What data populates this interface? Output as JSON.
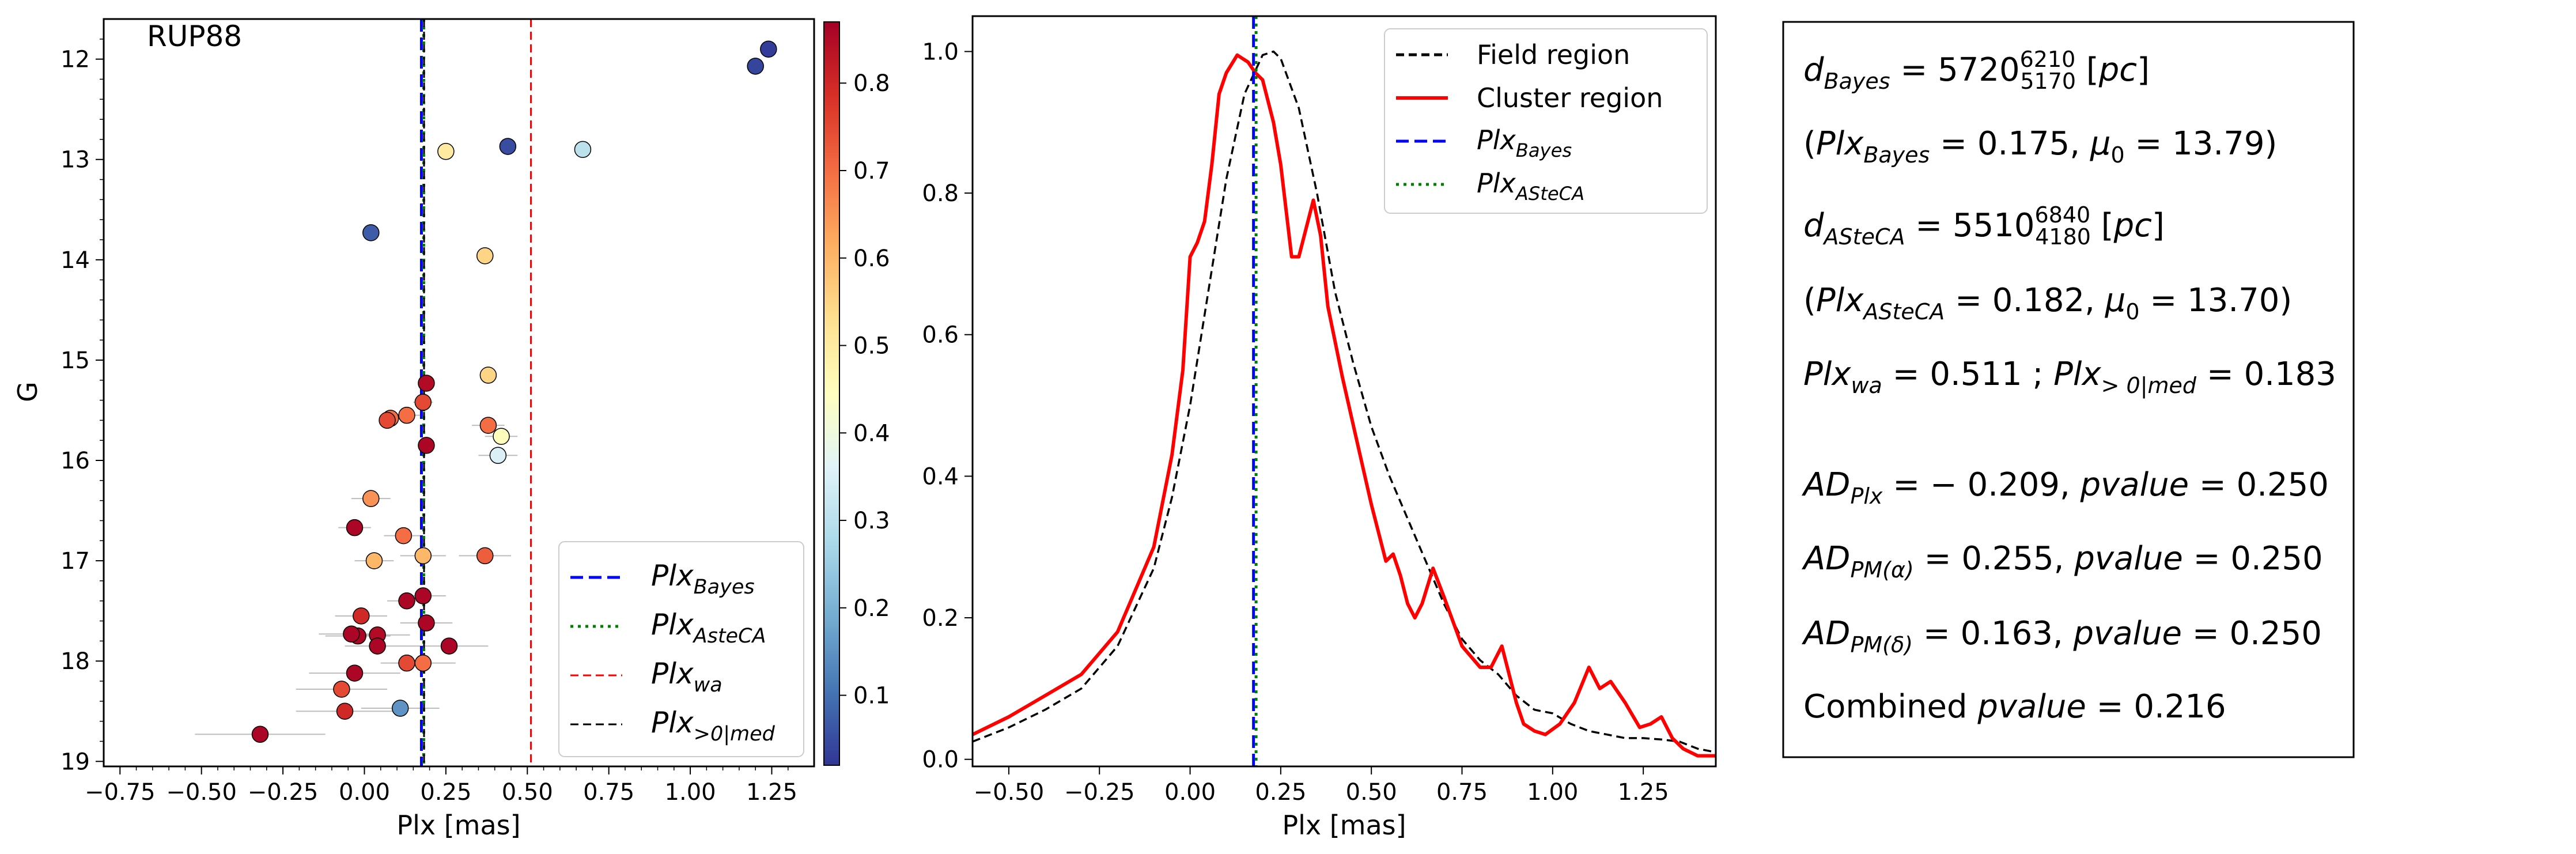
{
  "chart_data": [
    {
      "type": "scatter",
      "title": "RUP88",
      "xlabel": "Plx [mas]",
      "ylabel": "G",
      "xlim": [
        -0.8,
        1.38
      ],
      "ylim": [
        19.05,
        11.6
      ],
      "y_inverted": true,
      "x_ticks": [
        -0.75,
        -0.5,
        -0.25,
        0.0,
        0.25,
        0.5,
        0.75,
        1.0,
        1.25
      ],
      "x_tick_labels": [
        "−0.75",
        "−0.50",
        "−0.25",
        "0.00",
        "0.25",
        "0.50",
        "0.75",
        "1.00",
        "1.25"
      ],
      "y_ticks": [
        12,
        13,
        14,
        15,
        16,
        17,
        18,
        19
      ],
      "y_tick_labels": [
        "12",
        "13",
        "14",
        "15",
        "16",
        "17",
        "18",
        "19"
      ],
      "colormap": "RdYlBu_r",
      "colorbar": {
        "range": [
          0.02,
          0.87
        ],
        "ticks": [
          0.1,
          0.2,
          0.3,
          0.4,
          0.5,
          0.6,
          0.7,
          0.8
        ],
        "tick_labels": [
          "0.1",
          "0.2",
          "0.3",
          "0.4",
          "0.5",
          "0.6",
          "0.7",
          "0.8"
        ],
        "stops": [
          "#313695",
          "#4575b4",
          "#74add1",
          "#abd9e9",
          "#e0f3f8",
          "#ffffbf",
          "#fee090",
          "#fdae61",
          "#f46d43",
          "#d73027",
          "#a50026"
        ]
      },
      "points": [
        {
          "x": 1.24,
          "y": 11.9,
          "err": 0.0,
          "c": 0.03
        },
        {
          "x": 1.2,
          "y": 12.07,
          "err": 0.0,
          "c": 0.04
        },
        {
          "x": 0.44,
          "y": 12.87,
          "err": 0.0,
          "c": 0.05
        },
        {
          "x": 0.67,
          "y": 12.9,
          "err": 0.0,
          "c": 0.3
        },
        {
          "x": 0.25,
          "y": 12.92,
          "err": 0.0,
          "c": 0.5
        },
        {
          "x": 0.02,
          "y": 13.73,
          "err": 0.0,
          "c": 0.07
        },
        {
          "x": 0.37,
          "y": 13.96,
          "err": 0.0,
          "c": 0.55
        },
        {
          "x": 0.38,
          "y": 15.15,
          "err": 0.0,
          "c": 0.55
        },
        {
          "x": 0.19,
          "y": 15.23,
          "err": 0.0,
          "c": 0.85
        },
        {
          "x": 0.18,
          "y": 15.42,
          "err": 0.03,
          "c": 0.75
        },
        {
          "x": 0.13,
          "y": 15.55,
          "err": 0.05,
          "c": 0.7
        },
        {
          "x": 0.08,
          "y": 15.58,
          "err": 0.0,
          "c": 0.7
        },
        {
          "x": 0.38,
          "y": 15.65,
          "err": 0.05,
          "c": 0.7
        },
        {
          "x": 0.07,
          "y": 15.6,
          "err": 0.0,
          "c": 0.75
        },
        {
          "x": 0.42,
          "y": 15.76,
          "err": 0.05,
          "c": 0.45
        },
        {
          "x": 0.19,
          "y": 15.85,
          "err": 0.0,
          "c": 0.86
        },
        {
          "x": 0.41,
          "y": 15.95,
          "err": 0.06,
          "c": 0.35
        },
        {
          "x": 0.02,
          "y": 16.38,
          "err": 0.06,
          "c": 0.65
        },
        {
          "x": -0.03,
          "y": 16.67,
          "err": 0.05,
          "c": 0.86
        },
        {
          "x": 0.12,
          "y": 16.75,
          "err": 0.06,
          "c": 0.7
        },
        {
          "x": 0.37,
          "y": 16.95,
          "err": 0.08,
          "c": 0.72
        },
        {
          "x": 0.18,
          "y": 16.95,
          "err": 0.07,
          "c": 0.6
        },
        {
          "x": 0.03,
          "y": 17.0,
          "err": 0.06,
          "c": 0.6
        },
        {
          "x": 0.18,
          "y": 17.35,
          "err": 0.07,
          "c": 0.86
        },
        {
          "x": 0.13,
          "y": 17.4,
          "err": 0.06,
          "c": 0.86
        },
        {
          "x": 0.19,
          "y": 17.62,
          "err": 0.08,
          "c": 0.86
        },
        {
          "x": -0.01,
          "y": 17.55,
          "err": 0.08,
          "c": 0.8
        },
        {
          "x": -0.02,
          "y": 17.75,
          "err": 0.1,
          "c": 0.86
        },
        {
          "x": -0.04,
          "y": 17.73,
          "err": 0.1,
          "c": 0.86
        },
        {
          "x": 0.04,
          "y": 17.74,
          "err": 0.1,
          "c": 0.85
        },
        {
          "x": 0.04,
          "y": 17.85,
          "err": 0.1,
          "c": 0.86
        },
        {
          "x": 0.26,
          "y": 17.85,
          "err": 0.12,
          "c": 0.86
        },
        {
          "x": 0.13,
          "y": 18.02,
          "err": 0.08,
          "c": 0.75
        },
        {
          "x": 0.18,
          "y": 18.02,
          "err": 0.1,
          "c": 0.7
        },
        {
          "x": -0.03,
          "y": 18.12,
          "err": 0.14,
          "c": 0.86
        },
        {
          "x": -0.07,
          "y": 18.28,
          "err": 0.14,
          "c": 0.75
        },
        {
          "x": 0.11,
          "y": 18.47,
          "err": 0.12,
          "c": 0.15
        },
        {
          "x": -0.06,
          "y": 18.5,
          "err": 0.15,
          "c": 0.8
        },
        {
          "x": -0.32,
          "y": 18.73,
          "err": 0.2,
          "c": 0.86
        }
      ],
      "vlines": [
        {
          "name": "PlxBayes",
          "x": 0.175,
          "color": "#0000ff",
          "style": "dashed"
        },
        {
          "name": "PlxASteCA",
          "x": 0.182,
          "color": "#008000",
          "style": "dotted"
        },
        {
          "name": "Plxwa",
          "x": 0.511,
          "color": "#ff0000",
          "style": "dashed-thin"
        },
        {
          "name": "Plx>0|med",
          "x": 0.183,
          "color": "#000000",
          "style": "dashed-thin"
        }
      ],
      "legend": {
        "placement": "lower-right",
        "entries": [
          {
            "base": "Plx",
            "sub": "Bayes",
            "color": "#0000ff",
            "style": "dashed"
          },
          {
            "base": "Plx",
            "sub": "AsteCA",
            "color": "#008000",
            "style": "dotted"
          },
          {
            "base": "Plx",
            "sub": "wa",
            "color": "#ff0000",
            "style": "dashed-thin"
          },
          {
            "base": "Plx",
            "sub": ">0|med",
            "color": "#000000",
            "style": "dashed-thin"
          }
        ]
      }
    },
    {
      "type": "line",
      "xlabel": "Plx [mas]",
      "ylabel": "",
      "xlim": [
        -0.6,
        1.45
      ],
      "ylim": [
        -0.01,
        1.05
      ],
      "x_ticks": [
        -0.5,
        -0.25,
        0.0,
        0.25,
        0.5,
        0.75,
        1.0,
        1.25
      ],
      "x_tick_labels": [
        "−0.50",
        "−0.25",
        "0.00",
        "0.25",
        "0.50",
        "0.75",
        "1.00",
        "1.25"
      ],
      "y_ticks": [
        0.0,
        0.2,
        0.4,
        0.6,
        0.8,
        1.0
      ],
      "y_tick_labels": [
        "0.0",
        "0.2",
        "0.4",
        "0.6",
        "0.8",
        "1.0"
      ],
      "series": [
        {
          "name": "Field region",
          "color": "#000000",
          "style": "dashed",
          "x": [
            -0.6,
            -0.5,
            -0.4,
            -0.3,
            -0.2,
            -0.1,
            -0.05,
            0.0,
            0.05,
            0.1,
            0.15,
            0.2,
            0.23,
            0.25,
            0.3,
            0.35,
            0.4,
            0.45,
            0.5,
            0.55,
            0.6,
            0.65,
            0.7,
            0.75,
            0.8,
            0.85,
            0.9,
            0.95,
            1.0,
            1.05,
            1.1,
            1.15,
            1.2,
            1.25,
            1.3,
            1.35,
            1.4,
            1.45
          ],
          "y": [
            0.025,
            0.045,
            0.07,
            0.1,
            0.16,
            0.27,
            0.37,
            0.5,
            0.66,
            0.82,
            0.94,
            0.995,
            1.0,
            0.99,
            0.92,
            0.8,
            0.66,
            0.56,
            0.47,
            0.4,
            0.34,
            0.28,
            0.22,
            0.17,
            0.14,
            0.12,
            0.09,
            0.07,
            0.065,
            0.05,
            0.04,
            0.035,
            0.03,
            0.03,
            0.028,
            0.025,
            0.015,
            0.01
          ]
        },
        {
          "name": "Cluster region",
          "color": "#ff0000",
          "style": "solid",
          "x": [
            -0.6,
            -0.5,
            -0.4,
            -0.3,
            -0.2,
            -0.1,
            -0.05,
            -0.02,
            0.0,
            0.02,
            0.04,
            0.06,
            0.08,
            0.1,
            0.13,
            0.16,
            0.18,
            0.2,
            0.23,
            0.25,
            0.28,
            0.3,
            0.32,
            0.34,
            0.36,
            0.38,
            0.42,
            0.46,
            0.5,
            0.54,
            0.56,
            0.58,
            0.6,
            0.62,
            0.64,
            0.67,
            0.7,
            0.75,
            0.8,
            0.83,
            0.86,
            0.88,
            0.9,
            0.92,
            0.95,
            0.98,
            1.02,
            1.06,
            1.1,
            1.13,
            1.16,
            1.2,
            1.24,
            1.27,
            1.3,
            1.33,
            1.36,
            1.4,
            1.45
          ],
          "y": [
            0.035,
            0.06,
            0.09,
            0.12,
            0.18,
            0.3,
            0.43,
            0.55,
            0.71,
            0.73,
            0.76,
            0.84,
            0.94,
            0.97,
            0.995,
            0.985,
            0.97,
            0.96,
            0.9,
            0.84,
            0.71,
            0.71,
            0.75,
            0.79,
            0.74,
            0.64,
            0.54,
            0.45,
            0.36,
            0.28,
            0.29,
            0.26,
            0.22,
            0.2,
            0.22,
            0.27,
            0.23,
            0.16,
            0.13,
            0.13,
            0.16,
            0.12,
            0.08,
            0.05,
            0.04,
            0.035,
            0.05,
            0.08,
            0.13,
            0.1,
            0.11,
            0.08,
            0.045,
            0.05,
            0.06,
            0.03,
            0.015,
            0.005,
            0.005
          ]
        }
      ],
      "vlines": [
        {
          "name": "PlxBayes",
          "x": 0.175,
          "color": "#0000ff",
          "style": "dashed"
        },
        {
          "name": "PlxASteCA",
          "x": 0.182,
          "color": "#008000",
          "style": "dotted"
        }
      ],
      "legend": {
        "placement": "top-right",
        "entries": [
          {
            "text": "Field region",
            "color": "#000000",
            "style": "dashed"
          },
          {
            "text": "Cluster region",
            "color": "#ff0000",
            "style": "solid"
          },
          {
            "base": "Plx",
            "sub": "Bayes",
            "color": "#0000ff",
            "style": "dashed"
          },
          {
            "base": "Plx",
            "sub": "ASteCA",
            "color": "#008000",
            "style": "dotted"
          }
        ]
      }
    }
  ],
  "info_box": [
    {
      "parts": [
        {
          "t": "d",
          "i": true
        },
        {
          "t": "Bayes",
          "i": true,
          "sub": true
        },
        {
          "t": " = 5720"
        },
        {
          "t": "6210",
          "sup": true
        },
        {
          "t": "5170",
          "sub": true,
          "back": true
        },
        {
          "t": " ["
        },
        {
          "t": "pc",
          "i": true
        },
        {
          "t": "]"
        }
      ]
    },
    {
      "parts": [
        {
          "t": "("
        },
        {
          "t": "Plx",
          "i": true
        },
        {
          "t": "Bayes",
          "i": true,
          "sub": true
        },
        {
          "t": " = 0.175,  "
        },
        {
          "t": "μ",
          "i": true
        },
        {
          "t": "0",
          "sub": true
        },
        {
          "t": " = 13.79)"
        }
      ]
    },
    {
      "parts": [
        {
          "t": "d",
          "i": true
        },
        {
          "t": "ASteCA",
          "i": true,
          "sub": true
        },
        {
          "t": " = 5510"
        },
        {
          "t": "6840",
          "sup": true
        },
        {
          "t": "4180",
          "sub": true,
          "back": true
        },
        {
          "t": " ["
        },
        {
          "t": "pc",
          "i": true
        },
        {
          "t": "]"
        }
      ]
    },
    {
      "parts": [
        {
          "t": "("
        },
        {
          "t": "Plx",
          "i": true
        },
        {
          "t": "ASteCA",
          "i": true,
          "sub": true
        },
        {
          "t": " = 0.182,  "
        },
        {
          "t": "μ",
          "i": true
        },
        {
          "t": "0",
          "sub": true
        },
        {
          "t": " = 13.70)"
        }
      ]
    },
    {
      "parts": [
        {
          "t": "Plx",
          "i": true
        },
        {
          "t": "wa",
          "i": true,
          "sub": true
        },
        {
          "t": " = 0.511 ; "
        },
        {
          "t": "Plx",
          "i": true
        },
        {
          "t": "> 0|med",
          "i": true,
          "sub": true
        },
        {
          "t": " = 0.183"
        }
      ]
    },
    {
      "parts": [
        {
          "t": "AD",
          "i": true
        },
        {
          "t": "Plx",
          "i": true,
          "sub": true
        },
        {
          "t": " = − 0.209,  "
        },
        {
          "t": "pvalue",
          "i": true
        },
        {
          "t": " = 0.250"
        }
      ]
    },
    {
      "parts": [
        {
          "t": "AD",
          "i": true
        },
        {
          "t": "PM(α)",
          "i": true,
          "sub": true
        },
        {
          "t": " = 0.255,  "
        },
        {
          "t": "pvalue",
          "i": true
        },
        {
          "t": " = 0.250"
        }
      ]
    },
    {
      "parts": [
        {
          "t": "AD",
          "i": true
        },
        {
          "t": "PM(δ)",
          "i": true,
          "sub": true
        },
        {
          "t": " = 0.163,  "
        },
        {
          "t": "pvalue",
          "i": true
        },
        {
          "t": " = 0.250"
        }
      ]
    },
    {
      "parts": [
        {
          "t": "Combined "
        },
        {
          "t": "pvalue",
          "i": true
        },
        {
          "t": " = 0.216"
        }
      ]
    }
  ]
}
